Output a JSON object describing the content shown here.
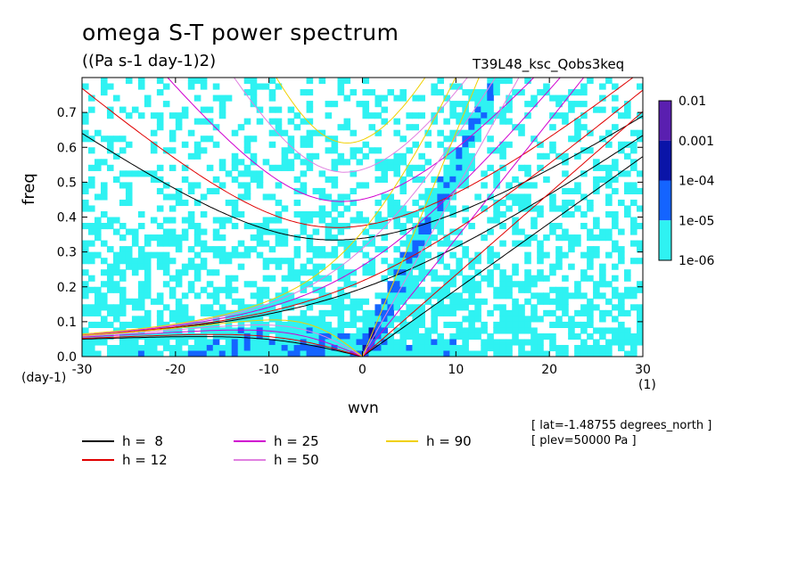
{
  "chart_data": {
    "type": "heatmap",
    "title": "omega S-T power spectrum",
    "units": "((Pa s-1 day-1)2)",
    "run_id": "T39L48_ksc_Qobs3keq",
    "xlabel": "wvn",
    "ylabel": "freq",
    "x_unit": "(1)",
    "y_unit": "(day-1)",
    "xlim": [
      -30,
      30
    ],
    "ylim": [
      0,
      0.8
    ],
    "x_ticks": [
      "-30",
      "-20",
      "-10",
      "0",
      "10",
      "20",
      "30"
    ],
    "y_ticks": [
      "0.0",
      "0.1",
      "0.2",
      "0.3",
      "0.4",
      "0.5",
      "0.6",
      "0.7"
    ],
    "colorbar": {
      "levels": [
        "0.01",
        "0.001",
        "1e-04",
        "1e-05",
        "1e-06"
      ],
      "colors": [
        "#5a1fb0",
        "#0a14a8",
        "#1464ff",
        "#2ff2f2"
      ]
    },
    "dispersion_curves": [
      {
        "label": "h =  8",
        "color": "#000000"
      },
      {
        "label": "h = 12",
        "color": "#e00000"
      },
      {
        "label": "h = 25",
        "color": "#d000d0"
      },
      {
        "label": "h = 50",
        "color": "#e080e0"
      },
      {
        "label": "h = 90",
        "color": "#f0d000"
      }
    ],
    "annotations": [
      "[ lat=-1.48755 degrees_north ]",
      "[ plev=50000 Pa ]"
    ]
  }
}
